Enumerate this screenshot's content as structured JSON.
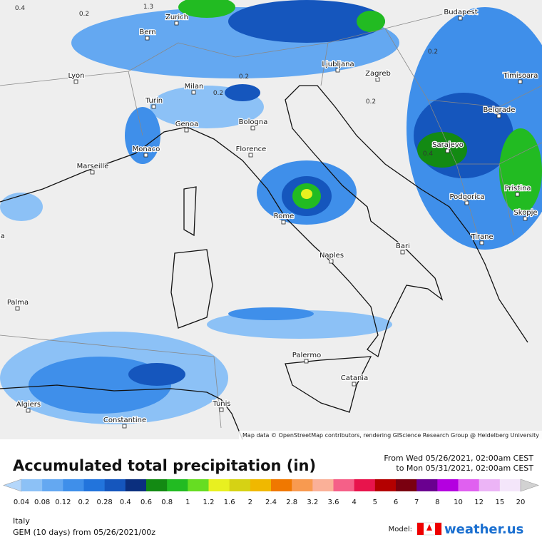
{
  "map": {
    "cities": [
      "Zurich",
      "Bern",
      "Budapest",
      "Lyon",
      "Milan",
      "Ljubljana",
      "Zagreb",
      "Timisoara",
      "Turin",
      "Genoa",
      "Bologna",
      "Belgrade",
      "Monaco",
      "Florence",
      "Sarajevo",
      "Marseille",
      "Podgorica",
      "Pristina",
      "Rome",
      "Skopje",
      "Barcelona",
      "Tirane",
      "Naples",
      "Bari",
      "Palma",
      "Palermo",
      "Catania",
      "Algiers",
      "Constantine",
      "Tunis"
    ],
    "contour_labels": [
      "0.4",
      "0.2",
      "1.3",
      "0.2",
      "0.2",
      "0.2",
      "0.2",
      "0.4"
    ],
    "attribution": "Map data © OpenStreetMap contributors, rendering GIScience Research Group @ Heidelberg University"
  },
  "title": "Accumulated total precipitation (in)",
  "valid_from": "From Wed 05/26/2021, 02:00am CEST",
  "valid_to": "to Mon 05/31/2021, 02:00am CEST",
  "colorbar": {
    "ticks": [
      "0.04",
      "0.08",
      "0.12",
      "0.2",
      "0.28",
      "0.4",
      "0.6",
      "0.8",
      "1",
      "1.2",
      "1.6",
      "2",
      "2.4",
      "2.8",
      "3.2",
      "3.6",
      "4",
      "5",
      "6",
      "7",
      "8",
      "10",
      "12",
      "15",
      "20"
    ],
    "colors": [
      "#b4d7fb",
      "#8cc1f6",
      "#64a8f1",
      "#3f8fea",
      "#2274dc",
      "#1556bd",
      "#0b2f7e",
      "#138a13",
      "#22bb22",
      "#66dd22",
      "#e8f020",
      "#d6d214",
      "#f0b800",
      "#f07800",
      "#f89a50",
      "#fab098",
      "#f56088",
      "#e8144c",
      "#b40000",
      "#7a0010",
      "#6a0090",
      "#b400e0",
      "#e060f0",
      "#ecb4f6",
      "#f4e6fa",
      "#d2d2d2"
    ]
  },
  "region": "Italy",
  "model_run": "GEM (10 days) from 05/26/2021/00z",
  "model_label": "Model:",
  "brand": "weather.us"
}
